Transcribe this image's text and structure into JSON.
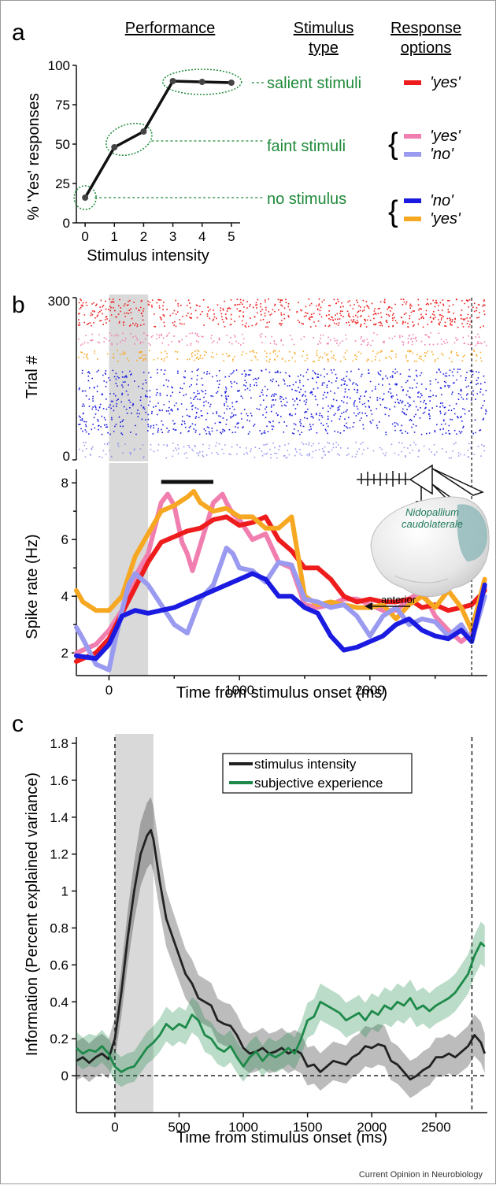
{
  "credit": "Current Opinion in Neurobiology",
  "colors": {
    "salient_yes": "#ee1c1c",
    "faint_yes": "#f07fb0",
    "faint_no": "#9a9af0",
    "none_no": "#1a1ae0",
    "none_yes": "#f7a822",
    "green_text": "#1f8a3a",
    "intensity": "#222222",
    "subjective": "#1e8a4a",
    "shade": "#d9d9d9"
  },
  "panel_a": {
    "letter": "a",
    "headers": {
      "performance": "Performance",
      "stimulus_type": [
        "Stimulus",
        "type"
      ],
      "response_options": [
        "Response",
        "options"
      ]
    },
    "categories": [
      {
        "name": "salient stimuli",
        "responses": [
          "'yes'"
        ]
      },
      {
        "name": "faint stimuli",
        "responses": [
          "'yes'",
          "'no'"
        ]
      },
      {
        "name": "no stimulus",
        "responses": [
          "'no'",
          "'yes'"
        ]
      }
    ]
  },
  "panel_b": {
    "letter": "b",
    "raster_ylabel": "Trial #",
    "raster_ticks": [
      "300",
      "0"
    ],
    "brain_label": [
      "Nidopallium",
      "caudolaterale"
    ],
    "anterior_label": "anterior"
  },
  "panel_c": {
    "letter": "c"
  },
  "chart_data": [
    {
      "type": "line",
      "xlabel": "Stimulus intensity",
      "ylabel": "% 'Yes' responses",
      "categories": [
        "0",
        "1",
        "2",
        "3",
        "4",
        "5"
      ],
      "values": [
        16,
        48,
        58,
        90,
        89.5,
        89
      ],
      "yticks": [
        0,
        25,
        50,
        75,
        100
      ],
      "ylim": [
        0,
        100
      ],
      "xlim": [
        -0.3,
        5.3
      ]
    },
    {
      "type": "line",
      "xlabel": "Time from stimulus onset (ms)",
      "ylabel": "Spike rate (Hz)",
      "xlim": [
        -250,
        2900
      ],
      "ylim": [
        1.2,
        8.2
      ],
      "xticks": [
        0,
        1000,
        2000
      ],
      "yticks": [
        2,
        4,
        6,
        8
      ],
      "shaded_window": [
        0,
        300
      ],
      "analysis_bar": [
        400,
        800
      ],
      "response_marker": 2780,
      "series": [
        {
          "color_key": "faint_yes",
          "x": [
            -250,
            -100,
            0,
            100,
            200,
            300,
            400,
            450,
            500,
            560,
            600,
            640,
            700,
            800,
            870,
            900,
            950,
            1000,
            1100,
            1200,
            1300,
            1400,
            1500,
            1600,
            1700,
            1800,
            1900,
            2000,
            2100,
            2200,
            2300,
            2400,
            2500,
            2600,
            2700,
            2780,
            2880
          ],
          "y": [
            2.0,
            2.3,
            2.8,
            3.5,
            4.7,
            5.5,
            7.3,
            7.6,
            7.2,
            5.9,
            5.5,
            4.9,
            5.8,
            7.3,
            7.6,
            7.3,
            6.9,
            6.7,
            6.0,
            6.2,
            5.2,
            5.0,
            3.7,
            3.6,
            3.7,
            3.9,
            3.9,
            3.7,
            3.5,
            3.5,
            3.9,
            4.2,
            3.3,
            2.8,
            2.4,
            2.7,
            4.3
          ]
        },
        {
          "color_key": "salient_yes",
          "x": [
            -250,
            -100,
            0,
            100,
            200,
            300,
            400,
            500,
            600,
            700,
            800,
            900,
            1000,
            1100,
            1200,
            1300,
            1400,
            1500,
            1600,
            1700,
            1800,
            1900,
            2000,
            2100,
            2200,
            2300,
            2400,
            2500,
            2600,
            2700,
            2780,
            2880
          ],
          "y": [
            1.7,
            2.0,
            2.5,
            3.4,
            4.3,
            5.2,
            5.9,
            6.1,
            6.3,
            6.4,
            6.7,
            6.8,
            6.5,
            6.6,
            6.8,
            6.0,
            5.6,
            5.0,
            5.0,
            4.6,
            4.0,
            3.8,
            3.9,
            3.8,
            3.8,
            3.9,
            3.6,
            3.7,
            3.5,
            3.6,
            3.7,
            4.2
          ]
        },
        {
          "color_key": "none_yes",
          "x": [
            -250,
            -200,
            -100,
            0,
            100,
            200,
            300,
            400,
            500,
            600,
            650,
            700,
            800,
            900,
            1000,
            1100,
            1200,
            1300,
            1400,
            1500,
            1600,
            1700,
            1800,
            1900,
            2000,
            2100,
            2200,
            2300,
            2400,
            2500,
            2600,
            2700,
            2780,
            2880
          ],
          "y": [
            4.2,
            3.8,
            3.5,
            3.5,
            4.0,
            5.4,
            6.2,
            7.0,
            7.2,
            7.5,
            7.7,
            7.3,
            7.0,
            7.1,
            6.8,
            6.8,
            6.4,
            6.4,
            6.8,
            4.0,
            3.7,
            3.8,
            3.7,
            3.6,
            3.6,
            3.7,
            3.2,
            3.7,
            4.0,
            3.6,
            4.2,
            3.6,
            2.8,
            4.6
          ]
        },
        {
          "color_key": "faint_no",
          "x": [
            -250,
            -200,
            -100,
            0,
            50,
            100,
            150,
            200,
            300,
            400,
            500,
            600,
            700,
            800,
            900,
            950,
            1000,
            1100,
            1200,
            1300,
            1400,
            1500,
            1600,
            1700,
            1800,
            1900,
            2000,
            2100,
            2200,
            2300,
            2400,
            2500,
            2600,
            2700,
            2780,
            2880
          ],
          "y": [
            2.9,
            2.5,
            1.6,
            1.4,
            2.5,
            3.5,
            4.4,
            4.8,
            4.4,
            3.7,
            3.0,
            2.7,
            3.9,
            4.4,
            5.7,
            5.5,
            5.0,
            4.9,
            4.5,
            5.2,
            5.1,
            3.9,
            3.8,
            3.6,
            3.7,
            3.3,
            2.6,
            3.3,
            3.6,
            3.0,
            3.2,
            3.1,
            2.6,
            3.0,
            2.4,
            4.0
          ]
        },
        {
          "color_key": "none_no",
          "x": [
            -250,
            -100,
            0,
            100,
            200,
            300,
            400,
            500,
            600,
            700,
            800,
            900,
            1000,
            1100,
            1200,
            1300,
            1400,
            1500,
            1600,
            1700,
            1800,
            1900,
            2000,
            2100,
            2200,
            2300,
            2400,
            2500,
            2600,
            2700,
            2780,
            2880
          ],
          "y": [
            1.9,
            1.8,
            2.3,
            3.3,
            3.5,
            3.4,
            3.5,
            3.6,
            3.8,
            4.0,
            4.2,
            4.4,
            4.6,
            4.8,
            4.6,
            4.0,
            4.0,
            3.6,
            3.4,
            2.6,
            2.1,
            2.2,
            2.4,
            2.6,
            3.0,
            3.2,
            2.8,
            2.6,
            2.5,
            2.8,
            2.4,
            4.4
          ]
        }
      ]
    },
    {
      "type": "area",
      "xlabel": "Time from stimulus onset (ms)",
      "ylabel": "Information (Percent explained variance)",
      "xlim": [
        -300,
        2900
      ],
      "ylim": [
        -0.2,
        1.8
      ],
      "xticks": [
        0,
        500,
        1000,
        1500,
        2000,
        2500
      ],
      "yticks": [
        0,
        0.2,
        0.4,
        0.6,
        0.8,
        1,
        1.2,
        1.4,
        1.6,
        1.8
      ],
      "shaded_window": [
        0,
        300
      ],
      "vertical_markers": [
        0,
        2780
      ],
      "zero_line": true,
      "legend_position": "top-right",
      "series": [
        {
          "name": "stimulus intensity",
          "color_key": "intensity",
          "x": [
            -300,
            -250,
            -200,
            -150,
            -100,
            -50,
            0,
            50,
            100,
            150,
            200,
            250,
            280,
            300,
            350,
            400,
            450,
            500,
            550,
            600,
            650,
            700,
            750,
            800,
            850,
            900,
            950,
            1000,
            1050,
            1100,
            1150,
            1200,
            1250,
            1300,
            1350,
            1400,
            1450,
            1500,
            1550,
            1600,
            1650,
            1700,
            1750,
            1800,
            1850,
            1900,
            1950,
            2000,
            2050,
            2100,
            2150,
            2200,
            2250,
            2300,
            2350,
            2400,
            2450,
            2500,
            2550,
            2600,
            2650,
            2700,
            2750,
            2800,
            2850,
            2880
          ],
          "y": [
            0.08,
            0.1,
            0.07,
            0.1,
            0.12,
            0.09,
            0.2,
            0.45,
            0.75,
            1.0,
            1.2,
            1.3,
            1.33,
            1.28,
            1.05,
            0.85,
            0.75,
            0.65,
            0.55,
            0.5,
            0.42,
            0.4,
            0.38,
            0.3,
            0.28,
            0.27,
            0.22,
            0.15,
            0.12,
            0.13,
            0.15,
            0.12,
            0.13,
            0.15,
            0.12,
            0.14,
            0.12,
            0.05,
            0.06,
            0.02,
            0.05,
            0.08,
            0.07,
            0.06,
            0.1,
            0.12,
            0.16,
            0.15,
            0.17,
            0.16,
            0.08,
            0.06,
            0.02,
            -0.02,
            0.0,
            0.03,
            0.05,
            0.1,
            0.1,
            0.12,
            0.1,
            0.13,
            0.16,
            0.22,
            0.18,
            0.12
          ],
          "band": 0.1
        },
        {
          "name": "subjective experience",
          "color_key": "subjective",
          "x": [
            -300,
            -250,
            -200,
            -150,
            -100,
            -50,
            0,
            50,
            100,
            150,
            200,
            250,
            300,
            350,
            400,
            450,
            500,
            550,
            600,
            650,
            700,
            750,
            800,
            850,
            900,
            950,
            1000,
            1050,
            1100,
            1150,
            1200,
            1250,
            1300,
            1350,
            1400,
            1450,
            1500,
            1550,
            1600,
            1650,
            1700,
            1750,
            1800,
            1850,
            1900,
            1950,
            2000,
            2050,
            2100,
            2150,
            2200,
            2250,
            2300,
            2350,
            2400,
            2450,
            2500,
            2550,
            2600,
            2650,
            2700,
            2750,
            2800,
            2850,
            2880
          ],
          "y": [
            0.15,
            0.12,
            0.14,
            0.13,
            0.16,
            0.12,
            0.05,
            0.02,
            0.04,
            0.05,
            0.1,
            0.15,
            0.18,
            0.22,
            0.28,
            0.25,
            0.28,
            0.26,
            0.33,
            0.3,
            0.22,
            0.2,
            0.15,
            0.13,
            0.16,
            0.1,
            0.05,
            0.1,
            0.13,
            0.08,
            0.12,
            0.1,
            0.12,
            0.15,
            0.12,
            0.2,
            0.3,
            0.32,
            0.4,
            0.38,
            0.36,
            0.34,
            0.3,
            0.32,
            0.34,
            0.3,
            0.35,
            0.33,
            0.38,
            0.36,
            0.4,
            0.38,
            0.42,
            0.36,
            0.38,
            0.35,
            0.38,
            0.4,
            0.42,
            0.45,
            0.5,
            0.55,
            0.65,
            0.72,
            0.7
          ],
          "band": 0.08
        }
      ]
    }
  ]
}
